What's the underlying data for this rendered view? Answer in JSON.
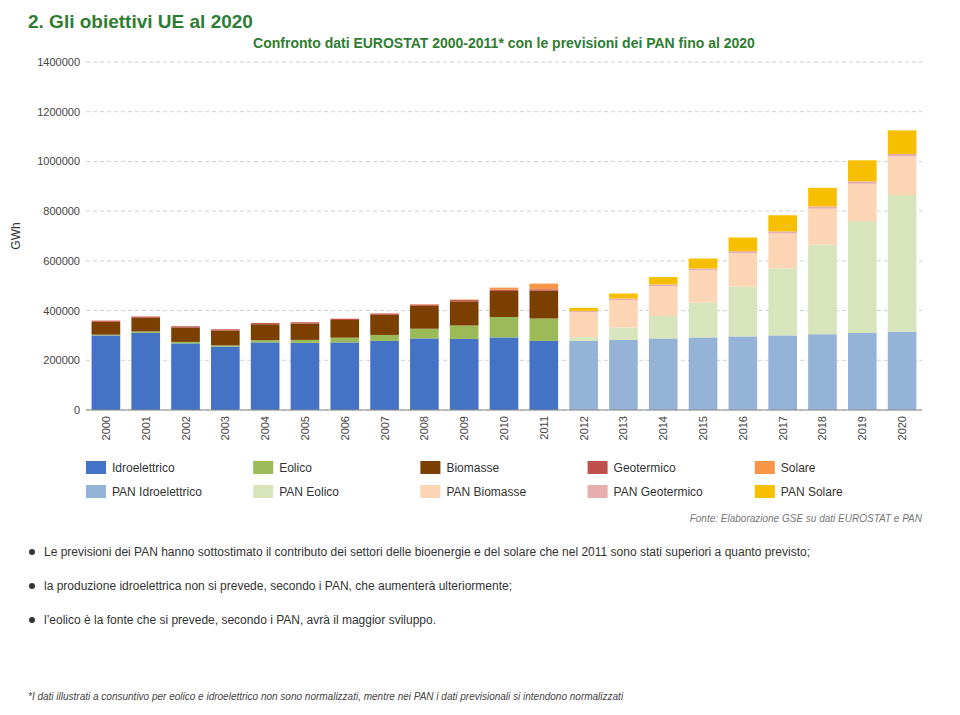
{
  "chart_data": {
    "type": "bar",
    "stacked": true,
    "title": "Confronto dati EUROSTAT 2000-2011* con le previsioni dei PAN fino al 2020",
    "y_label": "GWh",
    "categories": [
      "2000",
      "2001",
      "2002",
      "2003",
      "2004",
      "2005",
      "2006",
      "2007",
      "2008",
      "2009",
      "2010",
      "2011",
      "2012",
      "2013",
      "2014",
      "2015",
      "2016",
      "2017",
      "2018",
      "2019",
      "2020"
    ],
    "series": [
      {
        "name": "Idroelettrico",
        "color": "#4472C4",
        "values": [
          300000,
          310000,
          268000,
          255000,
          272000,
          270000,
          272000,
          278000,
          288000,
          286000,
          292000,
          278000,
          null,
          null,
          null,
          null,
          null,
          null,
          null,
          null,
          null
        ]
      },
      {
        "name": "Eolico",
        "color": "#9BBB59",
        "values": [
          3000,
          6000,
          6000,
          5000,
          9000,
          12000,
          19000,
          24000,
          39000,
          54000,
          82000,
          90000,
          null,
          null,
          null,
          null,
          null,
          null,
          null,
          null,
          null
        ]
      },
      {
        "name": "Biomasse",
        "color": "#7B3F00",
        "values": [
          52000,
          55000,
          58000,
          60000,
          64000,
          66000,
          71000,
          81000,
          92000,
          97000,
          105000,
          112000,
          null,
          null,
          null,
          null,
          null,
          null,
          null,
          null,
          null
        ]
      },
      {
        "name": "Geotermico",
        "color": "#C0504D",
        "values": [
          4500,
          5000,
          4800,
          4600,
          4800,
          4900,
          5000,
          5200,
          5300,
          5300,
          5400,
          5500,
          null,
          null,
          null,
          null,
          null,
          null,
          null,
          null,
          null
        ]
      },
      {
        "name": "Solare",
        "color": "#F79646",
        "values": [
          300,
          400,
          400,
          400,
          500,
          500,
          600,
          700,
          1200,
          2200,
          8000,
          23000,
          null,
          null,
          null,
          null,
          null,
          null,
          null,
          null,
          null
        ]
      },
      {
        "name": "PAN Idroelettrico",
        "color": "#95B3D7",
        "values": [
          null,
          null,
          null,
          null,
          null,
          null,
          null,
          null,
          null,
          null,
          null,
          null,
          278000,
          282000,
          288000,
          292000,
          296000,
          300000,
          305000,
          310000,
          315000
        ]
      },
      {
        "name": "PAN Eolico",
        "color": "#D8E4BC",
        "values": [
          null,
          null,
          null,
          null,
          null,
          null,
          null,
          null,
          null,
          null,
          null,
          null,
          15000,
          50000,
          90000,
          140000,
          200000,
          270000,
          360000,
          450000,
          550000
        ]
      },
      {
        "name": "PAN Biomasse",
        "color": "#FCD5B4",
        "values": [
          null,
          null,
          null,
          null,
          null,
          null,
          null,
          null,
          null,
          null,
          null,
          null,
          100000,
          110000,
          120000,
          130000,
          135000,
          140000,
          145000,
          150000,
          155000
        ]
      },
      {
        "name": "PAN Geotermico",
        "color": "#E6AFAD",
        "values": [
          null,
          null,
          null,
          null,
          null,
          null,
          null,
          null,
          null,
          null,
          null,
          null,
          6000,
          6500,
          7000,
          7500,
          8000,
          8500,
          9000,
          9500,
          10000
        ]
      },
      {
        "name": "PAN Solare",
        "color": "#F6C000",
        "values": [
          null,
          null,
          null,
          null,
          null,
          null,
          null,
          null,
          null,
          null,
          null,
          null,
          12000,
          20000,
          30000,
          40000,
          55000,
          65000,
          75000,
          85000,
          95000
        ]
      }
    ],
    "ylim": [
      0,
      1400000
    ],
    "yticks": [
      0,
      200000,
      400000,
      600000,
      800000,
      1000000,
      1200000,
      1400000
    ],
    "grid": true,
    "legend": "bottom",
    "annotations": [
      "2. Gli obiettivi UE al 2020",
      "Fonte: Elaborazione GSE su dati EUROSTAT e PAN",
      "Le previsioni dei PAN hanno sottostimato il contributo dei settori delle bioenergie e del solare che nel 2011 sono stati superiori a quanto previsto;",
      "la produzione idroelettrica non si prevede, secondo i PAN, che aumenterà ulteriormente;",
      "l’eolico è la fonte che si prevede, secondo i PAN, avrà il maggior sviluppo.",
      "*I dati illustrati a consuntivo per eolico e idroelettrico non sono normalizzati, mentre nei PAN i dati previsionali si intendono normalizzati"
    ]
  }
}
